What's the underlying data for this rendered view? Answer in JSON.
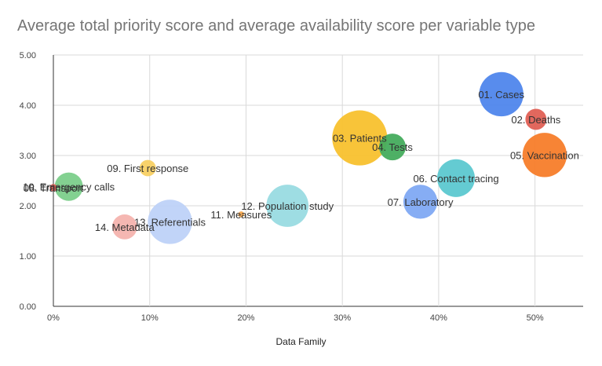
{
  "chart_data": {
    "type": "scatter",
    "title": "Average total priority score and average availability score per variable type",
    "xlabel": "Data Family",
    "ylabel": "",
    "xlim": [
      0,
      0.55
    ],
    "ylim": [
      0,
      5
    ],
    "x_ticks": [
      "0%",
      "10%",
      "20%",
      "30%",
      "40%",
      "50%"
    ],
    "x_tick_values": [
      0,
      0.1,
      0.2,
      0.3,
      0.4,
      0.5
    ],
    "y_ticks": [
      "0.00",
      "1.00",
      "2.00",
      "3.00",
      "4.00",
      "5.00"
    ],
    "y_tick_values": [
      0,
      1,
      2,
      3,
      4,
      5
    ],
    "grid": true,
    "points": [
      {
        "label": "01. Cases",
        "x": 0.465,
        "y": 4.22,
        "size": 11,
        "color": "#4f86ec"
      },
      {
        "label": "02. Deaths",
        "x": 0.501,
        "y": 3.72,
        "size": 2.5,
        "color": "#e06055"
      },
      {
        "label": "03. Patients",
        "x": 0.318,
        "y": 3.35,
        "size": 17,
        "color": "#f8c12e"
      },
      {
        "label": "04. Tests",
        "x": 0.352,
        "y": 3.17,
        "size": 4,
        "color": "#45ac5d"
      },
      {
        "label": "05. Vaccination",
        "x": 0.51,
        "y": 3.01,
        "size": 11,
        "color": "#f77d2a"
      },
      {
        "label": "06. Contact tracing",
        "x": 0.418,
        "y": 2.55,
        "size": 8,
        "color": "#5cc8d0"
      },
      {
        "label": "07. Laboratory",
        "x": 0.381,
        "y": 2.08,
        "size": 6.5,
        "color": "#7fa9f3"
      },
      {
        "label": "08. Transport",
        "x": 0.0,
        "y": 2.36,
        "size": 0.3,
        "color": "#e06055"
      },
      {
        "label": "09. First response",
        "x": 0.098,
        "y": 2.75,
        "size": 1.5,
        "color": "#f8d063"
      },
      {
        "label": "10. Emergency calls",
        "x": 0.016,
        "y": 2.38,
        "size": 4.5,
        "color": "#7ccf8b"
      },
      {
        "label": "11. Measures",
        "x": 0.195,
        "y": 1.83,
        "size": 0.2,
        "color": "#f8a94f"
      },
      {
        "label": "12. Population study",
        "x": 0.243,
        "y": 2.0,
        "size": 10,
        "color": "#99dbe1"
      },
      {
        "label": "13. Referentials",
        "x": 0.121,
        "y": 1.68,
        "size": 11,
        "color": "#bed2f8"
      },
      {
        "label": "14. Metadata",
        "x": 0.074,
        "y": 1.58,
        "size": 3.5,
        "color": "#f4b3ae"
      }
    ]
  }
}
